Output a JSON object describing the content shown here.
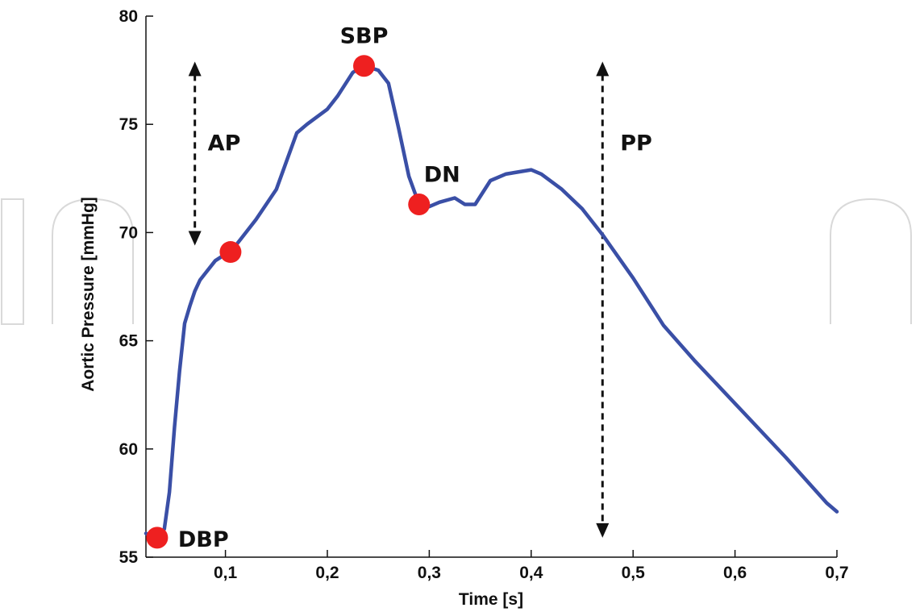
{
  "chart_data": {
    "type": "line",
    "xlabel": "Time [s]",
    "ylabel": "Aortic Pressure [mmHg]",
    "xlim": [
      0.022,
      0.7
    ],
    "ylim": [
      55,
      80
    ],
    "x_ticks": [
      0.1,
      0.2,
      0.3,
      0.4,
      0.5,
      0.6,
      0.7
    ],
    "x_tick_labels": [
      "0,1",
      "0,2",
      "0,3",
      "0,4",
      "0,5",
      "0,6",
      "0,7"
    ],
    "y_ticks": [
      55,
      60,
      65,
      70,
      75,
      80
    ],
    "y_tick_labels": [
      "55",
      "60",
      "65",
      "70",
      "75",
      "80"
    ],
    "grid": false,
    "line_color": "#3a4fa6",
    "marker_color": "#ee2020",
    "series": [
      {
        "x": [
          0.022,
          0.028,
          0.033,
          0.04,
          0.045,
          0.05,
          0.055,
          0.06,
          0.065,
          0.07,
          0.075,
          0.08,
          0.09,
          0.1,
          0.105,
          0.115,
          0.13,
          0.15,
          0.16,
          0.17,
          0.18,
          0.2,
          0.21,
          0.225,
          0.236,
          0.25,
          0.26,
          0.27,
          0.28,
          0.29,
          0.3,
          0.31,
          0.325,
          0.335,
          0.345,
          0.36,
          0.375,
          0.4,
          0.41,
          0.43,
          0.45,
          0.47,
          0.5,
          0.53,
          0.56,
          0.6,
          0.65,
          0.69,
          0.7
        ],
        "y": [
          56.1,
          55.9,
          55.9,
          56.3,
          58.0,
          61.0,
          63.6,
          65.8,
          66.6,
          67.3,
          67.8,
          68.1,
          68.7,
          69.0,
          69.1,
          69.7,
          70.6,
          72.0,
          73.3,
          74.6,
          75.0,
          75.7,
          76.3,
          77.4,
          77.7,
          77.5,
          76.9,
          74.8,
          72.6,
          71.3,
          71.2,
          71.4,
          71.6,
          71.3,
          71.3,
          72.4,
          72.7,
          72.9,
          72.7,
          72.0,
          71.1,
          69.9,
          67.9,
          65.7,
          64.1,
          62.1,
          59.6,
          57.5,
          57.1
        ]
      }
    ],
    "points": [
      {
        "label": "DBP",
        "x": 0.033,
        "y": 55.9
      },
      {
        "label": "",
        "x": 0.105,
        "y": 69.1
      },
      {
        "label": "SBP",
        "x": 0.236,
        "y": 77.7
      },
      {
        "label": "DN",
        "x": 0.29,
        "y": 71.3
      }
    ],
    "arrows": [
      {
        "label": "AP",
        "x": 0.07,
        "y_from": 69.4,
        "y_to": 77.9
      },
      {
        "label": "PP",
        "x": 0.47,
        "y_from": 55.9,
        "y_to": 77.9
      }
    ]
  }
}
